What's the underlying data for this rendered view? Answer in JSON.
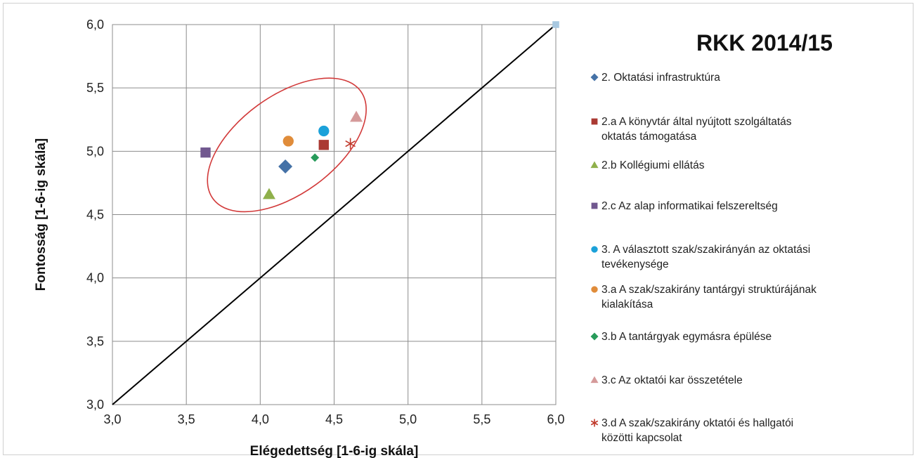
{
  "chart_data": {
    "type": "scatter",
    "title": "RKK 2014/15",
    "xlabel": "Elégedettség [1-6-ig skála]",
    "ylabel": "Fontosság [1-6-ig skála]",
    "xlim": [
      3.0,
      6.0
    ],
    "ylim": [
      3.0,
      6.0
    ],
    "xticks": [
      "3,0",
      "3,5",
      "4,0",
      "4,5",
      "5,0",
      "5,5",
      "6,0"
    ],
    "yticks": [
      "3,0",
      "3,5",
      "4,0",
      "4,5",
      "5,0",
      "5,5",
      "6,0"
    ],
    "grid": true,
    "legend_position": "right",
    "reference_line": {
      "from": [
        3.0,
        3.0
      ],
      "to": [
        6.0,
        6.0
      ],
      "color": "#000000"
    },
    "highlight_ellipse": {
      "cx": 4.18,
      "cy": 5.05,
      "color": "#d23a3a"
    },
    "extra_point": {
      "x": 6.0,
      "y": 6.0,
      "marker": "square",
      "color": "#a8c8e0"
    },
    "series": [
      {
        "name": "2. Oktatási infrastruktúra",
        "legend_lines": [
          "2. Oktatási infrastruktúra"
        ],
        "x": 4.17,
        "y": 4.88,
        "marker": "diamond",
        "color": "#4572a7"
      },
      {
        "name": "2.a A könyvtár által nyújtott szolgáltatás oktatás támogatása",
        "legend_lines": [
          "2.a  A könyvtár által nyújtott szolgáltatás",
          "oktatás támogatása"
        ],
        "x": 4.43,
        "y": 5.05,
        "marker": "square",
        "color": "#aa3a33"
      },
      {
        "name": "2.b Kollégiumi ellátás",
        "legend_lines": [
          "2.b  Kollégiumi ellátás"
        ],
        "x": 4.06,
        "y": 4.66,
        "marker": "triangle",
        "color": "#8fb04b"
      },
      {
        "name": "2.c Az alap informatikai felszereltség",
        "legend_lines": [
          "2.c  Az alap informatikai felszereltség"
        ],
        "x": 3.63,
        "y": 4.99,
        "marker": "square",
        "color": "#71588f"
      },
      {
        "name": "3. A választott szak/szakirányán az oktatási tevékenysége",
        "legend_lines": [
          "3.  A választott szak/szakirányán az oktatási",
          "tevékenysége"
        ],
        "x": 4.43,
        "y": 5.16,
        "marker": "circle",
        "color": "#1ba1d9"
      },
      {
        "name": "3.a A szak/szakirány tantárgyi struktúrájának kialakítása",
        "legend_lines": [
          "3.a  A  szak/szakirány tantárgyi struktúrájának",
          "kialakítása"
        ],
        "x": 4.19,
        "y": 5.08,
        "marker": "circle",
        "color": "#e08c3a"
      },
      {
        "name": "3.b A tantárgyak egymásra épülése",
        "legend_lines": [
          "3.b  A tantárgyak egymásra épülése"
        ],
        "x": 4.37,
        "y": 4.95,
        "marker": "diamond",
        "color": "#279b5a"
      },
      {
        "name": "3.c Az oktatói kar összetétele",
        "legend_lines": [
          "3.c  Az oktatói kar összetétele"
        ],
        "x": 4.65,
        "y": 5.27,
        "marker": "triangle",
        "color": "#d59a9a"
      },
      {
        "name": "3.d A szak/szakirány oktatói és hallgatói közötti kapcsolat",
        "legend_lines": [
          "3.d  A szak/szakirány oktatói és hallgatói",
          "közötti kapcsolat"
        ],
        "x": 4.61,
        "y": 5.06,
        "marker": "star",
        "color": "#c0392b"
      }
    ]
  }
}
